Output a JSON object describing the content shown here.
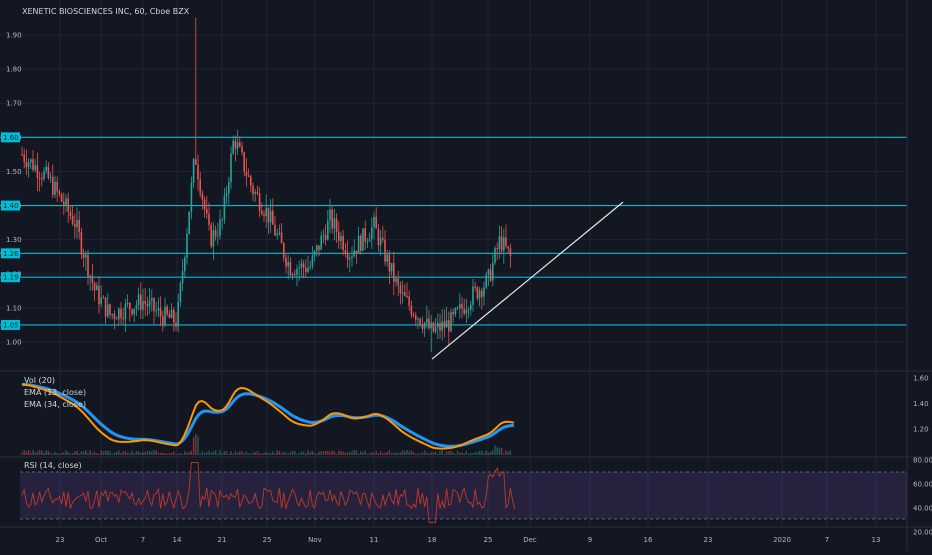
{
  "chart_title": "XENETIC BIOSCIENCES INC, 60, Cboe BZX",
  "colors": {
    "background": "#131722",
    "grid": "#1f2433",
    "up_candle": "#26a69a",
    "down_candle": "#ef5350",
    "level_line": "#00bcd4",
    "trend_line": "#e8e8e8",
    "ema_fast": "#ff9800",
    "ema_slow": "#2196f3",
    "rsi_line": "#c0392b",
    "rsi_band": "#7e57c2"
  },
  "price_axis": {
    "ticks": [
      "1.90",
      "1.80",
      "1.70",
      "1.60",
      "1.50",
      "1.40",
      "1.30",
      "1.20",
      "1.10",
      "1.00"
    ]
  },
  "level_badges": [
    {
      "label": "1.60",
      "price": 1.6
    },
    {
      "label": "1.40",
      "price": 1.4
    },
    {
      "label": "1.26",
      "price": 1.26
    },
    {
      "label": "1.19",
      "price": 1.19
    },
    {
      "label": "1.05",
      "price": 1.05
    }
  ],
  "ema_pane": {
    "legend": [
      "Vol (20)",
      "EMA (13, close)",
      "EMA (34, close)"
    ],
    "ticks": [
      "1.60",
      "1.40",
      "1.20"
    ]
  },
  "rsi_pane": {
    "legend": "RSI (14, close)",
    "ticks": [
      "80.00",
      "60.00",
      "40.00",
      "20.00"
    ]
  },
  "time_axis": {
    "labels": [
      "23",
      "Oct",
      "7",
      "14",
      "21",
      "25",
      "Nov",
      "11",
      "18",
      "25",
      "Dec",
      "9",
      "16",
      "23",
      "2020",
      "7",
      "13"
    ]
  },
  "trend_line": {
    "from": {
      "date": "Nov 18",
      "price": 0.95
    },
    "to": {
      "date": "Dec 12",
      "price": 1.41
    }
  },
  "chart_data": {
    "type": "candlestick",
    "title": "XENETIC BIOSCIENCES INC, 60, Cboe BZX",
    "ylim": [
      0.94,
      1.99
    ],
    "horizontal_levels": [
      1.6,
      1.4,
      1.26,
      1.19,
      1.05
    ],
    "indicators": [
      "Vol (20)",
      "EMA (13, close)",
      "EMA (34, close)",
      "RSI (14, close)"
    ],
    "close_path": [
      {
        "x": "Sep 20",
        "close": 1.55
      },
      {
        "x": "Sep 23",
        "close": 1.48
      },
      {
        "x": "Sep 26",
        "close": 1.35
      },
      {
        "x": "Sep 30",
        "close": 1.15
      },
      {
        "x": "Oct 2",
        "close": 1.08
      },
      {
        "x": "Oct 7",
        "close": 1.12
      },
      {
        "x": "Oct 10",
        "close": 1.08
      },
      {
        "x": "Oct 14",
        "close": 1.06
      },
      {
        "x": "Oct 16",
        "close": 1.55
      },
      {
        "x": "Oct 18",
        "close": 1.3
      },
      {
        "x": "Oct 21",
        "close": 1.35
      },
      {
        "x": "Oct 22",
        "close": 1.6
      },
      {
        "x": "Oct 24",
        "close": 1.45
      },
      {
        "x": "Oct 25",
        "close": 1.38
      },
      {
        "x": "Oct 29",
        "close": 1.22
      },
      {
        "x": "Nov 1",
        "close": 1.22
      },
      {
        "x": "Nov 4",
        "close": 1.36
      },
      {
        "x": "Nov 7",
        "close": 1.26
      },
      {
        "x": "Nov 11",
        "close": 1.34
      },
      {
        "x": "Nov 14",
        "close": 1.14
      },
      {
        "x": "Nov 18",
        "close": 1.03
      },
      {
        "x": "Nov 20",
        "close": 1.06
      },
      {
        "x": "Nov 22",
        "close": 1.13
      },
      {
        "x": "Nov 25",
        "close": 1.18
      },
      {
        "x": "Nov 26",
        "close": 1.3
      },
      {
        "x": "Nov 27",
        "close": 1.24
      }
    ]
  }
}
